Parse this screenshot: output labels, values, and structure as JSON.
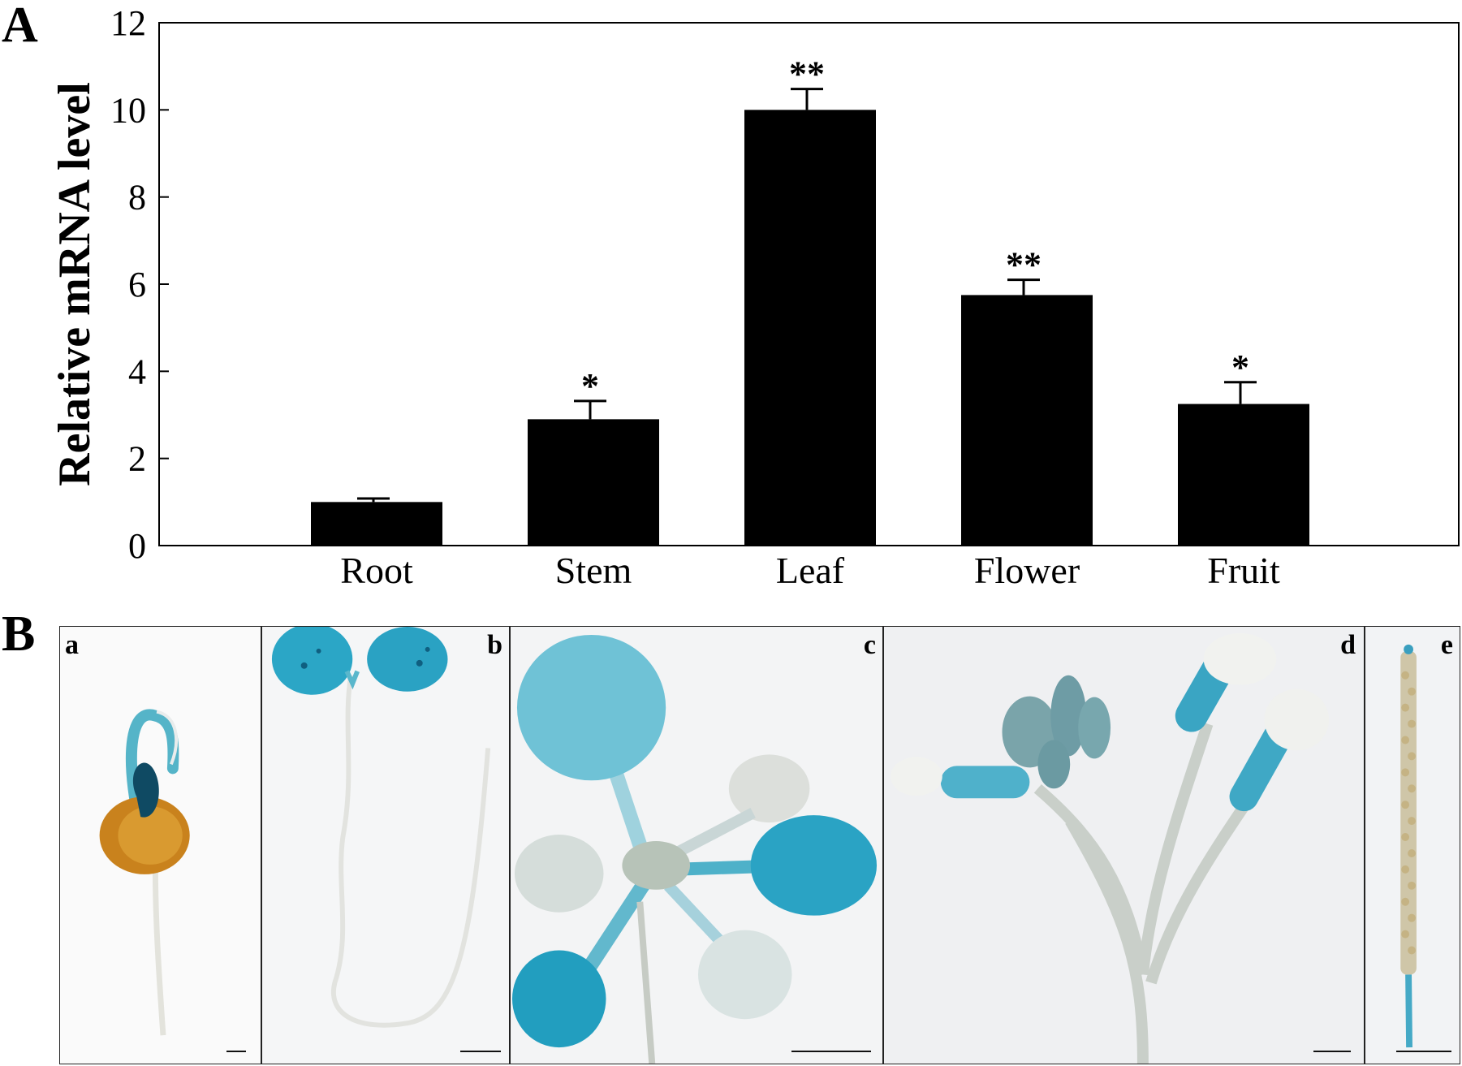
{
  "panels": {
    "a_label": "A",
    "b_label": "B"
  },
  "chart_data": {
    "type": "bar",
    "ylabel": "Relative mRNA level",
    "xlabel": "",
    "ylim": [
      0,
      12
    ],
    "yticks": [
      0,
      2,
      4,
      6,
      8,
      10,
      12
    ],
    "categories": [
      "Root",
      "Stem",
      "Leaf",
      "Flower",
      "Fruit"
    ],
    "values": [
      1.0,
      2.9,
      10.0,
      5.75,
      3.25
    ],
    "errors": [
      0.08,
      0.42,
      0.48,
      0.35,
      0.5
    ],
    "significance": [
      "",
      "*",
      "**",
      "**",
      "*"
    ],
    "bar_color": "#000000",
    "grid": false
  },
  "photos": [
    {
      "label": "a",
      "subject": "germinating seed with blue-stained cotyledon"
    },
    {
      "label": "b",
      "subject": "seedling with blue-stained cotyledons"
    },
    {
      "label": "c",
      "subject": "rosette with blue-stained leaves"
    },
    {
      "label": "d",
      "subject": "inflorescence with blue-stained flowers"
    },
    {
      "label": "e",
      "subject": "silique"
    }
  ],
  "stain_color": "#2aa3c2"
}
